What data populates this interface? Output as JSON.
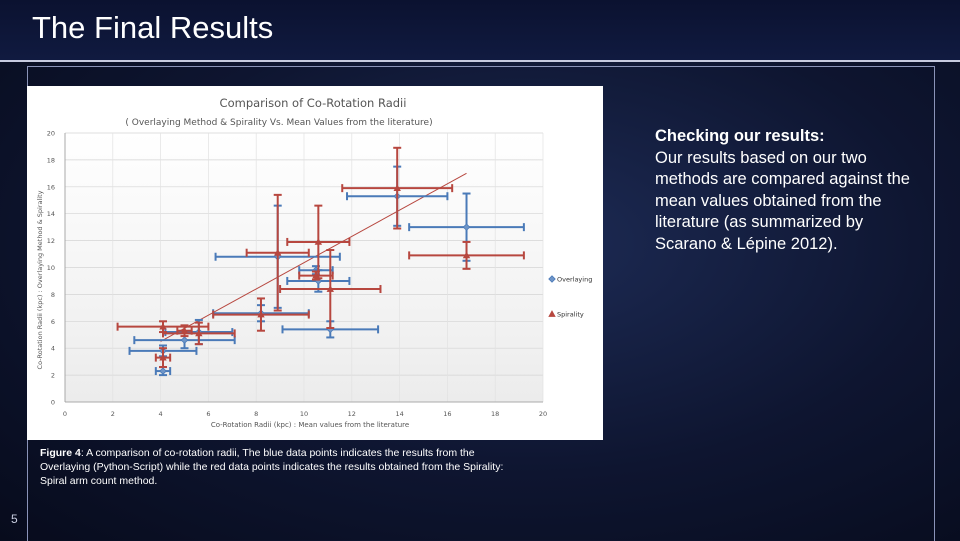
{
  "slide": {
    "title": "The Final Results",
    "number": "5"
  },
  "side_text": {
    "heading": "Checking our results:",
    "body": "Our results based on our two methods are compared against the mean values obtained from the literature (as summarized by Scarano & Lépine 2012)."
  },
  "caption": {
    "figure_label": "Figure 4",
    "text": ": A comparison of co-rotation radii, The blue data points indicates the results from the Overlaying (Python-Script) while the red data points indicates the results obtained from the Spirality: Spiral arm count method."
  },
  "colors": {
    "overlaying": "#4a7ab8",
    "spirality": "#b7473f",
    "trendline": "#b7473f"
  },
  "chart_data": {
    "type": "scatter",
    "title": "Comparison of Co-Rotation Radii",
    "subtitle": "( Overlaying Method  & Spirality Vs. Mean Values from the literature)",
    "xlabel": "Co-Rotation Radii (kpc) : Mean values from the literature",
    "ylabel": "Co-Rotation Radii (kpc) : Overlaying Method & Spirality",
    "xlim": [
      0,
      20
    ],
    "ylim": [
      0,
      20
    ],
    "x_ticks": [
      0,
      2,
      4,
      6,
      8,
      10,
      12,
      14,
      16,
      18,
      20
    ],
    "y_ticks": [
      0,
      2,
      4,
      6,
      8,
      10,
      12,
      14,
      16,
      18,
      20
    ],
    "grid": true,
    "legend_position": "right",
    "series": [
      {
        "name": "Overlaying",
        "marker": "diamond",
        "points": [
          {
            "x": 13.9,
            "y": 15.3,
            "xerr": 2.1,
            "yerr": 2.2
          },
          {
            "x": 16.8,
            "y": 13.0,
            "xerr": 2.4,
            "yerr": 2.5
          },
          {
            "x": 8.9,
            "y": 10.8,
            "xerr": 2.6,
            "yerr": 3.8
          },
          {
            "x": 10.5,
            "y": 9.8,
            "xerr": 0.7,
            "yerr": 0.3
          },
          {
            "x": 10.6,
            "y": 9.0,
            "xerr": 1.3,
            "yerr": 0.8
          },
          {
            "x": 8.2,
            "y": 6.6,
            "xerr": 2.0,
            "yerr": 0.6
          },
          {
            "x": 11.1,
            "y": 5.4,
            "xerr": 2.0,
            "yerr": 0.6
          },
          {
            "x": 5.6,
            "y": 5.2,
            "xerr": 1.4,
            "yerr": 0.9
          },
          {
            "x": 5.0,
            "y": 4.6,
            "xerr": 2.1,
            "yerr": 0.6
          },
          {
            "x": 4.1,
            "y": 3.8,
            "xerr": 1.4,
            "yerr": 0.4
          },
          {
            "x": 4.1,
            "y": 2.3,
            "xerr": 0.3,
            "yerr": 0.3
          }
        ]
      },
      {
        "name": "Spirality",
        "marker": "triangle",
        "points": [
          {
            "x": 13.9,
            "y": 15.9,
            "xerr": 2.3,
            "yerr": 3.0
          },
          {
            "x": 16.8,
            "y": 10.9,
            "xerr": 2.4,
            "yerr": 1.0
          },
          {
            "x": 10.6,
            "y": 11.9,
            "xerr": 1.3,
            "yerr": 2.7
          },
          {
            "x": 8.9,
            "y": 11.1,
            "xerr": 1.3,
            "yerr": 4.3
          },
          {
            "x": 10.5,
            "y": 9.4,
            "xerr": 0.7,
            "yerr": 0.3
          },
          {
            "x": 11.1,
            "y": 8.4,
            "xerr": 2.1,
            "yerr": 2.9
          },
          {
            "x": 8.2,
            "y": 6.5,
            "xerr": 2.0,
            "yerr": 1.2
          },
          {
            "x": 4.1,
            "y": 5.6,
            "xerr": 1.9,
            "yerr": 0.4
          },
          {
            "x": 5.6,
            "y": 5.1,
            "xerr": 1.5,
            "yerr": 0.8
          },
          {
            "x": 5.0,
            "y": 5.3,
            "xerr": 0.3,
            "yerr": 0.4
          },
          {
            "x": 4.1,
            "y": 3.3,
            "xerr": 0.3,
            "yerr": 0.7
          }
        ]
      }
    ],
    "trendline": {
      "x": [
        4.0,
        16.8
      ],
      "y": [
        4.5,
        17.0
      ]
    }
  }
}
